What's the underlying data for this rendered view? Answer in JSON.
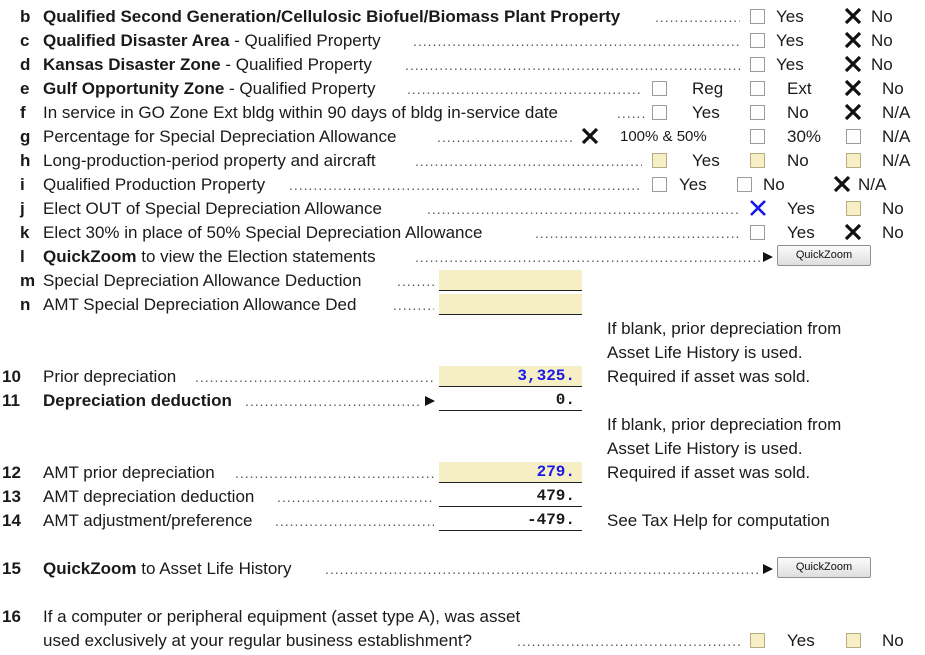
{
  "rows": {
    "b": {
      "letter": "b",
      "label_bold": "Qualified Second Generation/Cellulosic Biofuel/Biomass Plant Property",
      "label_rest": "",
      "opts": [
        "Yes",
        "No"
      ],
      "checked": "No"
    },
    "c": {
      "letter": "c",
      "label_bold": "Qualified Disaster Area",
      "label_rest": " - Qualified Property",
      "opts": [
        "Yes",
        "No"
      ],
      "checked": "No"
    },
    "d": {
      "letter": "d",
      "label_bold": "Kansas Disaster Zone",
      "label_rest": " - Qualified Property",
      "opts": [
        "Yes",
        "No"
      ],
      "checked": "No"
    },
    "e": {
      "letter": "e",
      "label_bold": "Gulf Opportunity Zone",
      "label_rest": " - Qualified Property",
      "opts": [
        "Reg",
        "Ext",
        "No"
      ],
      "checked": "No"
    },
    "f": {
      "letter": "f",
      "label": "In service in GO Zone Ext bldg within 90 days of bldg in-service date",
      "opts": [
        "Yes",
        "No",
        "N/A"
      ],
      "checked": "N/A"
    },
    "g": {
      "letter": "g",
      "label": "Percentage for Special Depreciation Allowance",
      "opts": [
        "100% & 50%",
        "30%",
        "N/A"
      ],
      "checked": "100% & 50%"
    },
    "h": {
      "letter": "h",
      "label": "Long-production-period property and aircraft",
      "opts": [
        "Yes",
        "No",
        "N/A"
      ],
      "checked": ""
    },
    "i": {
      "letter": "i",
      "label": "Qualified Production Property",
      "opts": [
        "Yes",
        "No",
        "N/A"
      ],
      "checked": "N/A"
    },
    "j": {
      "letter": "j",
      "label": "Elect OUT of Special Depreciation Allowance",
      "opts": [
        "Yes",
        "No"
      ],
      "checked": "Yes"
    },
    "k": {
      "letter": "k",
      "label": "Elect 30% in place of 50% Special Depreciation Allowance",
      "opts": [
        "Yes",
        "No"
      ],
      "checked": "No"
    },
    "l": {
      "letter": "l",
      "label_bold": "QuickZoom",
      "label_rest": " to view the Election statements",
      "button": "QuickZoom"
    },
    "m": {
      "letter": "m",
      "label": "Special Depreciation Allowance Deduction",
      "value": ""
    },
    "n": {
      "letter": "n",
      "label": "AMT Special Depreciation Allowance Ded",
      "value": ""
    }
  },
  "lines": {
    "l10": {
      "num": "10",
      "label": "Prior depreciation",
      "value": "3,325."
    },
    "l11": {
      "num": "11",
      "label": "Depreciation deduction",
      "value": "0."
    },
    "l12": {
      "num": "12",
      "label": "AMT prior depreciation",
      "value": "279."
    },
    "l13": {
      "num": "13",
      "label": "AMT depreciation deduction",
      "value": "479."
    },
    "l14": {
      "num": "14",
      "label": "AMT adjustment/preference",
      "value": "-479."
    },
    "l15": {
      "num": "15",
      "label_bold": "QuickZoom",
      "label_rest": " to Asset Life History",
      "button": "QuickZoom"
    },
    "l16": {
      "num": "16",
      "label1": "If a computer or peripheral equipment (asset type A), was asset",
      "label2": "used exclusively at your regular business establishment?",
      "opts": [
        "Yes",
        "No"
      ]
    }
  },
  "notes": {
    "prior_1": [
      "If blank, prior depreciation from",
      "Asset Life History is used.",
      "Required if asset was sold."
    ],
    "prior_2": [
      "If blank, prior depreciation from",
      "Asset Life History is used.",
      "Required if asset was sold."
    ],
    "tax_help": "See Tax Help for computation"
  },
  "colors": {
    "yellow_field": "#f6efc6",
    "blue_value": "#1a1ae6",
    "blue_check": "#1a1ae6"
  }
}
